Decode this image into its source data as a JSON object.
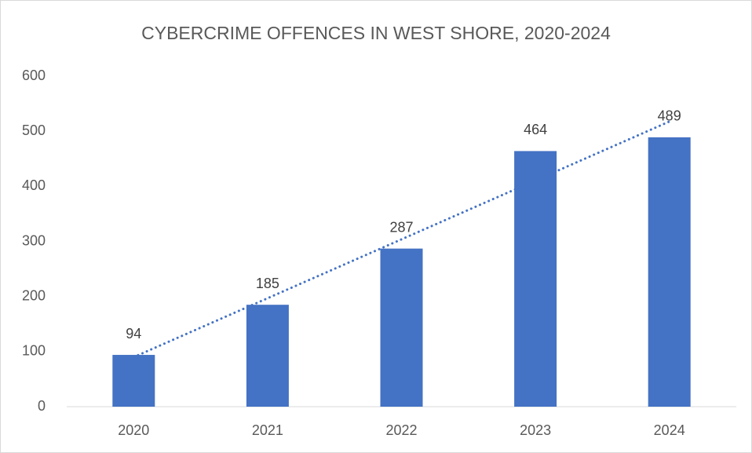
{
  "chart_data": {
    "type": "bar",
    "title": "CYBERCRIME OFFENCES IN WEST SHORE, 2020-2024",
    "categories": [
      "2020",
      "2021",
      "2022",
      "2023",
      "2024"
    ],
    "values": [
      94,
      185,
      287,
      464,
      489
    ],
    "color": "#4472c4",
    "ylim": [
      0,
      600
    ],
    "yticks": [
      0,
      100,
      200,
      300,
      400,
      500,
      600
    ],
    "grid": false,
    "data_labels": true,
    "trendline": "linear"
  }
}
